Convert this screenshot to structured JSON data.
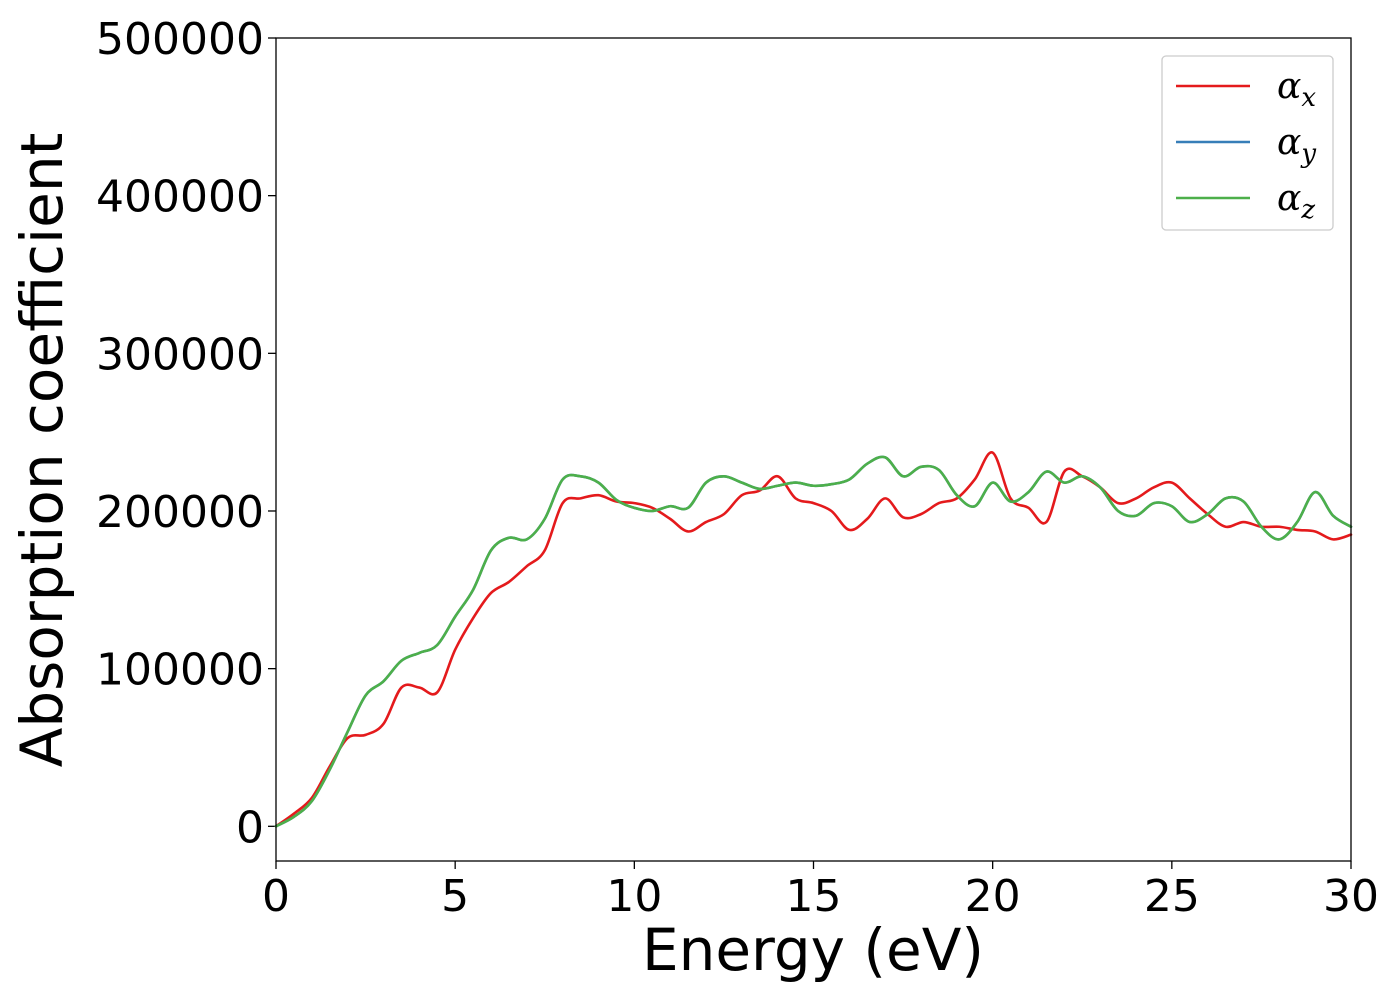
{
  "chart_data": {
    "type": "line",
    "xlabel": "Energy (eV)",
    "ylabel": "Absorption coefficient",
    "xlim": [
      0,
      30
    ],
    "ylim": [
      -22000,
      500000
    ],
    "x_ticks": [
      0,
      5,
      10,
      15,
      20,
      25,
      30
    ],
    "x_tick_labels": [
      "0",
      "5",
      "10",
      "15",
      "20",
      "25",
      "30"
    ],
    "y_ticks": [
      0,
      100000,
      200000,
      300000,
      400000,
      500000
    ],
    "y_tick_labels": [
      "0",
      "100000",
      "200000",
      "300000",
      "400000",
      "500000"
    ],
    "grid": false,
    "legend_position": "top-right",
    "series": [
      {
        "name": "α",
        "subscript": "x",
        "color": "#e41a1c",
        "x": [
          0,
          0.5,
          1.0,
          1.5,
          2.0,
          2.5,
          3.0,
          3.5,
          4.0,
          4.5,
          5.0,
          5.5,
          6.0,
          6.5,
          7.0,
          7.5,
          8.0,
          8.5,
          9.0,
          9.5,
          10.0,
          10.5,
          11.0,
          11.5,
          12.0,
          12.5,
          13.0,
          13.5,
          14.0,
          14.5,
          15.0,
          15.5,
          16.0,
          16.5,
          17.0,
          17.5,
          18.0,
          18.5,
          19.0,
          19.5,
          20.0,
          20.5,
          21.0,
          21.5,
          22.0,
          22.5,
          23.0,
          23.5,
          24.0,
          24.5,
          25.0,
          25.5,
          26.0,
          26.5,
          27.0,
          27.5,
          28.0,
          28.5,
          29.0,
          29.5,
          30.0
        ],
        "y": [
          0,
          8000,
          18000,
          38000,
          56000,
          58000,
          65000,
          88000,
          88000,
          85000,
          112000,
          132000,
          148000,
          155000,
          165000,
          175000,
          205000,
          208000,
          210000,
          206000,
          205000,
          202000,
          195000,
          187000,
          193000,
          198000,
          210000,
          213000,
          222000,
          208000,
          205000,
          200000,
          188000,
          195000,
          208000,
          196000,
          198000,
          205000,
          208000,
          220000,
          237000,
          208000,
          202000,
          193000,
          225000,
          222000,
          215000,
          205000,
          208000,
          215000,
          218000,
          208000,
          198000,
          190000,
          193000,
          190000,
          190000,
          188000,
          187000,
          182000,
          185000
        ]
      },
      {
        "name": "α",
        "subscript": "y",
        "color": "#377eb8",
        "x": [
          0,
          0.5,
          1.0,
          1.5,
          2.0,
          2.5,
          3.0,
          3.5,
          4.0,
          4.5,
          5.0,
          5.5,
          6.0,
          6.5,
          7.0,
          7.5,
          8.0,
          8.5,
          9.0,
          9.5,
          10.0,
          10.5,
          11.0,
          11.5,
          12.0,
          12.5,
          13.0,
          13.5,
          14.0,
          14.5,
          15.0,
          15.5,
          16.0,
          16.5,
          17.0,
          17.5,
          18.0,
          18.5,
          19.0,
          19.5,
          20.0,
          20.5,
          21.0,
          21.5,
          22.0,
          22.5,
          23.0,
          23.5,
          24.0,
          24.5,
          25.0,
          25.5,
          26.0,
          26.5,
          27.0,
          27.5,
          28.0,
          28.5,
          29.0,
          29.5,
          30.0
        ],
        "y": [
          0,
          6000,
          16000,
          36000,
          60000,
          83000,
          92000,
          105000,
          110000,
          115000,
          133000,
          150000,
          175000,
          183000,
          182000,
          195000,
          220000,
          222000,
          218000,
          207000,
          202000,
          200000,
          203000,
          202000,
          218000,
          222000,
          218000,
          214000,
          216000,
          218000,
          216000,
          217000,
          220000,
          230000,
          234000,
          222000,
          228000,
          226000,
          210000,
          203000,
          218000,
          206000,
          212000,
          225000,
          218000,
          222000,
          215000,
          200000,
          197000,
          205000,
          203000,
          193000,
          198000,
          208000,
          206000,
          190000,
          182000,
          193000,
          212000,
          197000,
          190000
        ]
      },
      {
        "name": "α",
        "subscript": "z",
        "color": "#4daf4a",
        "x": [
          0,
          0.5,
          1.0,
          1.5,
          2.0,
          2.5,
          3.0,
          3.5,
          4.0,
          4.5,
          5.0,
          5.5,
          6.0,
          6.5,
          7.0,
          7.5,
          8.0,
          8.5,
          9.0,
          9.5,
          10.0,
          10.5,
          11.0,
          11.5,
          12.0,
          12.5,
          13.0,
          13.5,
          14.0,
          14.5,
          15.0,
          15.5,
          16.0,
          16.5,
          17.0,
          17.5,
          18.0,
          18.5,
          19.0,
          19.5,
          20.0,
          20.5,
          21.0,
          21.5,
          22.0,
          22.5,
          23.0,
          23.5,
          24.0,
          24.5,
          25.0,
          25.5,
          26.0,
          26.5,
          27.0,
          27.5,
          28.0,
          28.5,
          29.0,
          29.5,
          30.0
        ],
        "y": [
          0,
          6000,
          16000,
          36000,
          60000,
          83000,
          92000,
          105000,
          110000,
          115000,
          133000,
          150000,
          175000,
          183000,
          182000,
          195000,
          220000,
          222000,
          218000,
          207000,
          202000,
          200000,
          203000,
          202000,
          218000,
          222000,
          218000,
          214000,
          216000,
          218000,
          216000,
          217000,
          220000,
          230000,
          234000,
          222000,
          228000,
          226000,
          210000,
          203000,
          218000,
          206000,
          212000,
          225000,
          218000,
          222000,
          215000,
          200000,
          197000,
          205000,
          203000,
          193000,
          198000,
          208000,
          206000,
          190000,
          182000,
          193000,
          212000,
          197000,
          190000
        ]
      }
    ]
  }
}
